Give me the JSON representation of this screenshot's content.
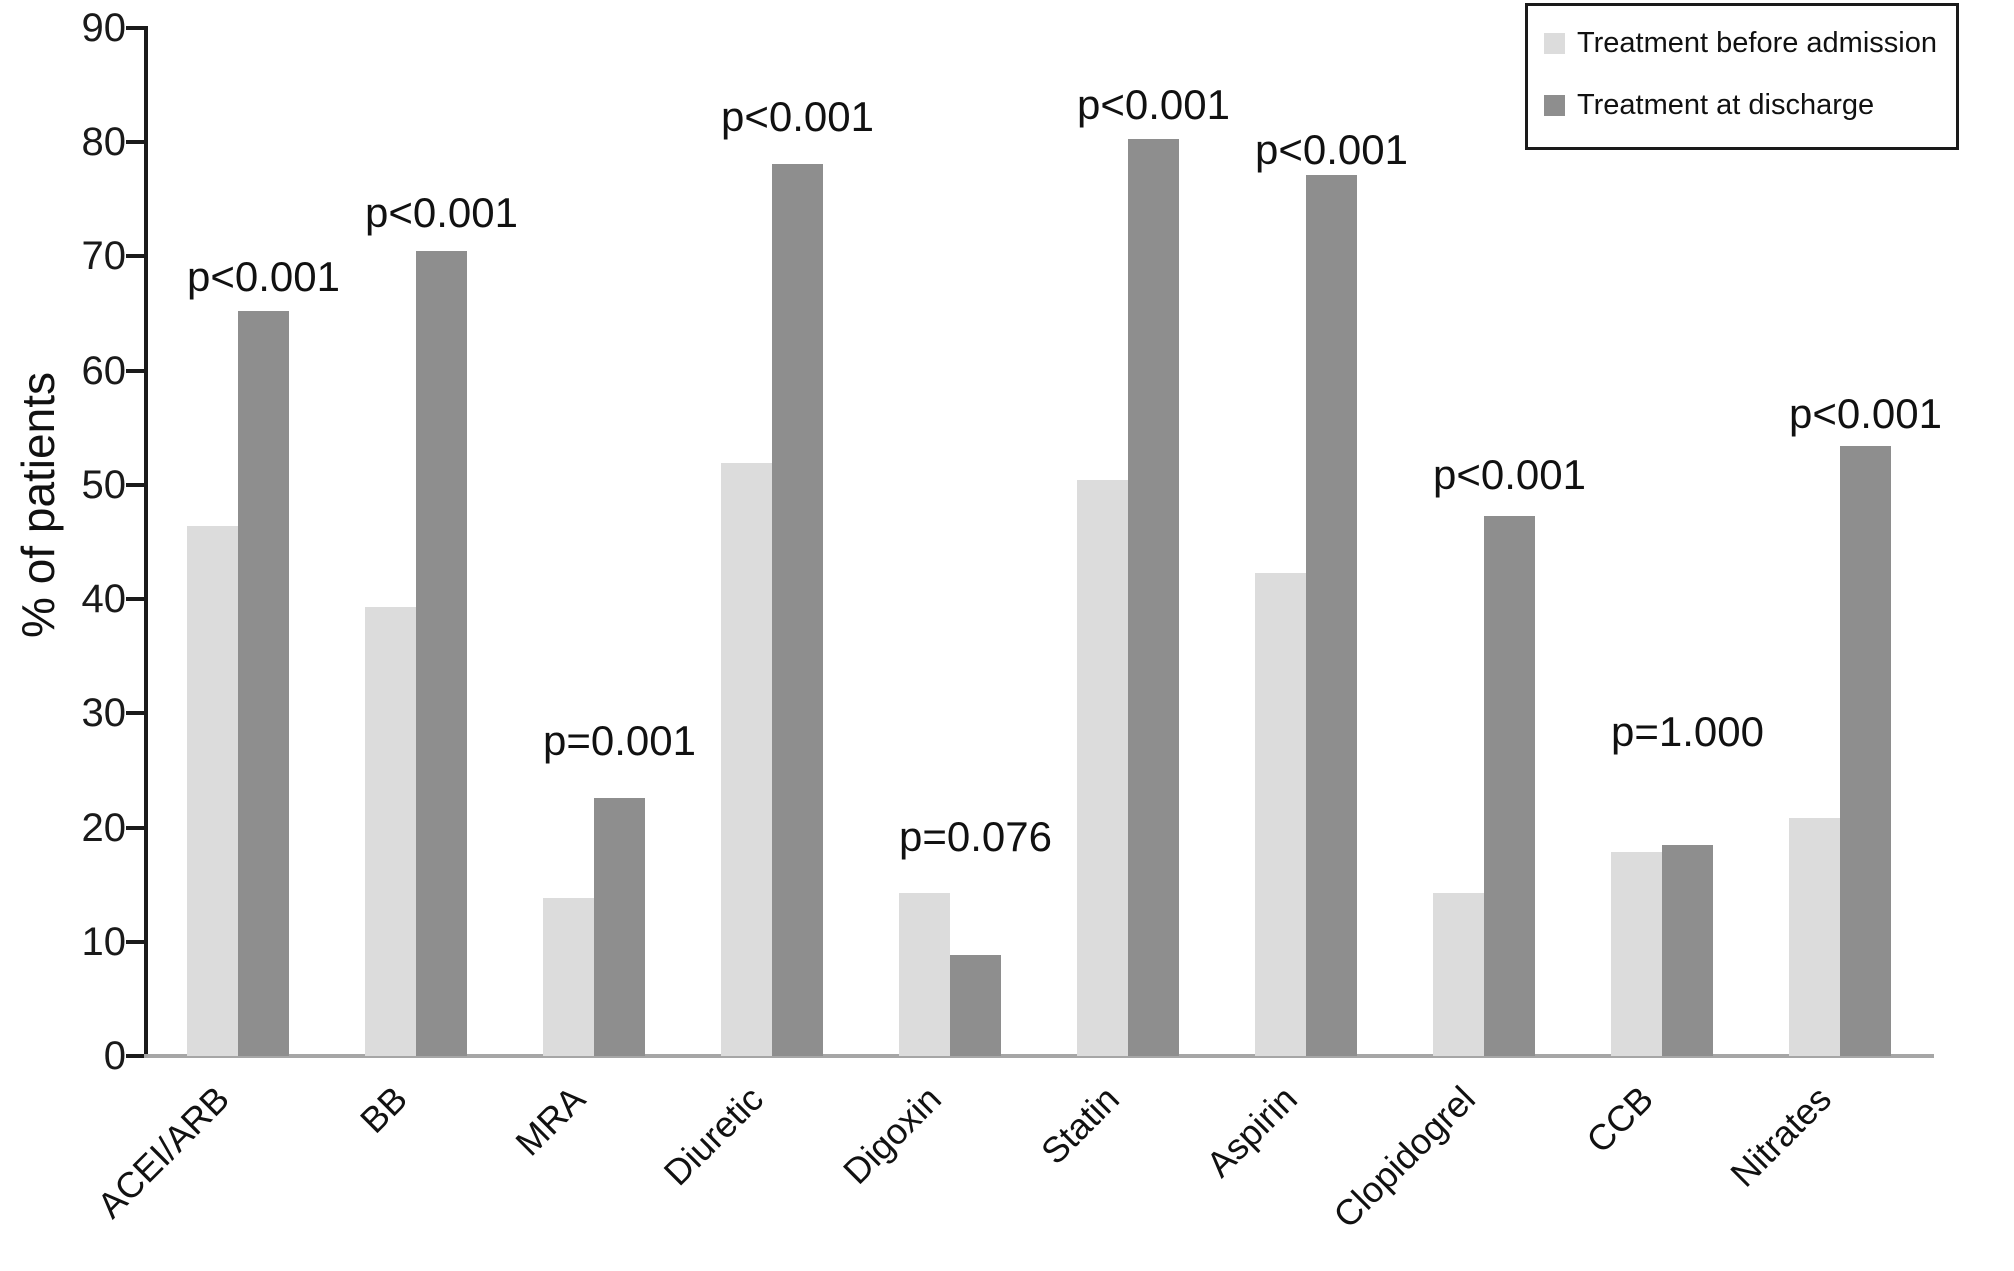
{
  "chart_data": {
    "type": "bar",
    "title": "",
    "ylabel": "% of patients",
    "xlabel": "",
    "ylim": [
      0,
      90
    ],
    "ytick_step": 10,
    "yticks": [
      0,
      10,
      20,
      30,
      40,
      50,
      60,
      70,
      80,
      90
    ],
    "grid": false,
    "legend_position": "top-right",
    "categories": [
      "ACEI/ARB",
      "BB",
      "MRA",
      "Diuretic",
      "Digoxin",
      "Statin",
      "Aspirin",
      "Clopidogrel",
      "CCB",
      "Nitrates"
    ],
    "series": [
      {
        "name": "Treatment before admission",
        "color": "#dcdcdc",
        "values": [
          46.4,
          39.3,
          13.8,
          51.9,
          14.3,
          50.4,
          42.3,
          14.3,
          17.9,
          20.8
        ]
      },
      {
        "name": "Treatment at discharge",
        "color": "#8e8e8e",
        "values": [
          65.2,
          70.5,
          22.6,
          78.1,
          8.8,
          80.3,
          77.1,
          47.3,
          18.5,
          53.4
        ]
      }
    ],
    "p_values": [
      "p<0.001",
      "p<0.001",
      "p=0.001",
      "p<0.001",
      "p=0.076",
      "p<0.001",
      "p<0.001",
      "p<0.001",
      "p=1.000",
      "p<0.001"
    ],
    "p_label_y": [
      68.2,
      73.8,
      27.6,
      82.2,
      19.2,
      83.3,
      79.3,
      50.9,
      28.4,
      56.2
    ],
    "axis_colors": {
      "axis": "#1a1a1a",
      "baseline": "#a6a6a6"
    }
  }
}
